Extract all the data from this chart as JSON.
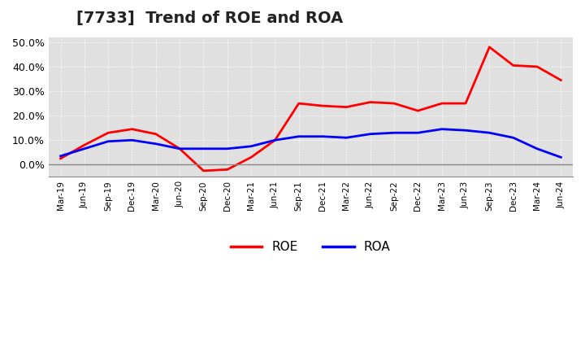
{
  "title": "[7733]  Trend of ROE and ROA",
  "labels": [
    "Mar-19",
    "Jun-19",
    "Sep-19",
    "Dec-19",
    "Mar-20",
    "Jun-20",
    "Sep-20",
    "Dec-20",
    "Mar-21",
    "Jun-21",
    "Sep-21",
    "Dec-21",
    "Mar-22",
    "Jun-22",
    "Sep-22",
    "Dec-22",
    "Mar-23",
    "Jun-23",
    "Sep-23",
    "Dec-23",
    "Mar-24",
    "Jun-24"
  ],
  "ROE": [
    2.5,
    8.0,
    13.0,
    14.5,
    12.5,
    6.5,
    -2.5,
    -2.0,
    3.0,
    10.0,
    25.0,
    24.0,
    23.5,
    25.5,
    25.0,
    22.0,
    25.0,
    25.0,
    48.0,
    40.5,
    40.0,
    34.5
  ],
  "ROA": [
    3.5,
    6.5,
    9.5,
    10.0,
    8.5,
    6.5,
    6.5,
    6.5,
    7.5,
    10.0,
    11.5,
    11.5,
    11.0,
    12.5,
    13.0,
    13.0,
    14.5,
    14.0,
    13.0,
    11.0,
    6.5,
    3.0
  ],
  "ROE_color": "#ff0000",
  "ROA_color": "#0000ff",
  "background_color": "#ffffff",
  "plot_bg_color": "#e0e0e0",
  "ylim": [
    -5,
    52
  ],
  "yticks": [
    0.0,
    10.0,
    20.0,
    30.0,
    40.0,
    50.0
  ],
  "grid_color": "#ffffff",
  "legend_ROE": "ROE",
  "legend_ROA": "ROA",
  "title_fontsize": 14,
  "line_width": 2.0
}
